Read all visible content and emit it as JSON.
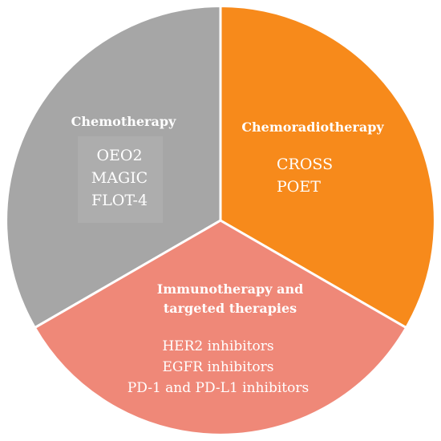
{
  "diagram": {
    "segments": [
      {
        "id": "chemotherapy",
        "title_lines": [
          "Chemotherapy"
        ],
        "items": [
          "OEO2",
          "MAGIC",
          "FLOT-4"
        ],
        "color": "#a6a6a6"
      },
      {
        "id": "chemoradiotherapy",
        "title_lines": [
          "Chemoradiotherapy"
        ],
        "items": [
          "CROSS",
          "POET"
        ],
        "color": "#f78a1b"
      },
      {
        "id": "immunotherapy",
        "title_lines": [
          "Immunotherapy and",
          "targeted therapies"
        ],
        "items": [
          "HER2 inhibitors",
          "EGFR inhibitors",
          "PD-1 and PD-L1 inhibitors"
        ],
        "color": "#ef8878"
      }
    ],
    "border_color": "#ffffff",
    "inner_box_color": "#adadad"
  }
}
